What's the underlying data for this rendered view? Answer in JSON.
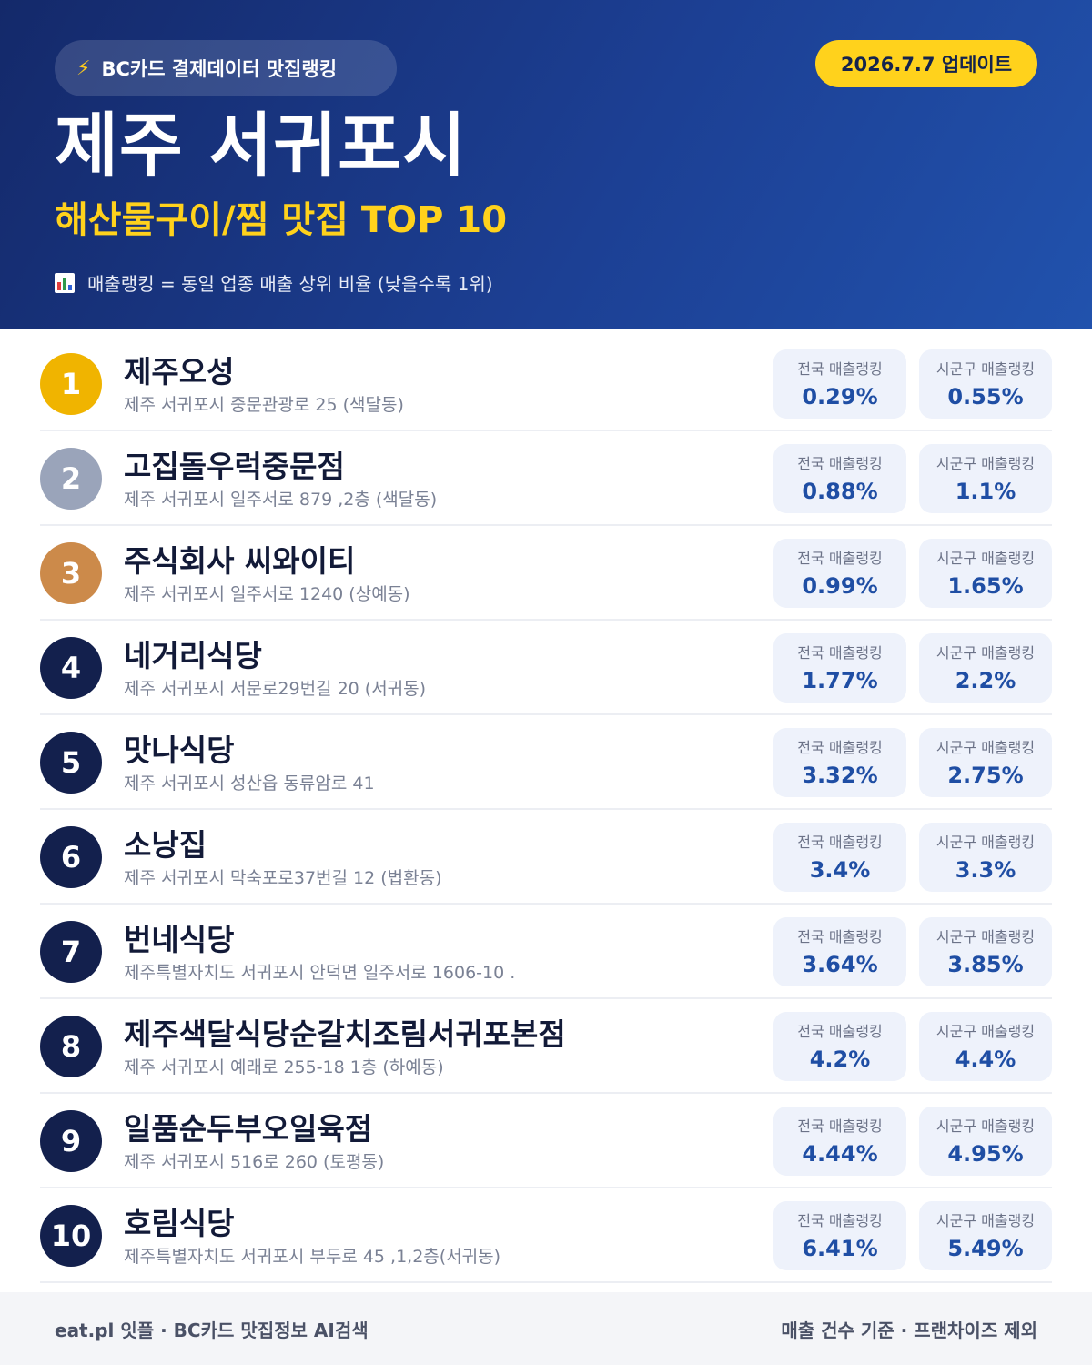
{
  "header": {
    "source_label": "BC카드 결제데이터 맛집랭킹",
    "update_label": "2026.7.7 업데이트",
    "title": "제주 서귀포시",
    "subtitle": "해산물구이/찜 맛집 TOP 10",
    "note": "매출랭킹 = 동일 업종 매출 상위 비율 (낮을수록 1위)",
    "icons": [
      "lightning-icon",
      "bar-chart-icon"
    ]
  },
  "colors": {
    "accent_yellow": "#ffd21c",
    "header_dark": "#14296a",
    "rank_gold": "#f0b400",
    "rank_silver": "#9aa4ba",
    "rank_bronze": "#cc8a4a",
    "rank_default": "#13204d",
    "value_blue": "#1f4ea4"
  },
  "stat_labels": {
    "national": "전국 매출랭킹",
    "local": "시군구 매출랭킹"
  },
  "restaurants": [
    {
      "rank": "1",
      "name": "제주오성",
      "address": "제주 서귀포시 중문관광로 25 (색달동)",
      "national": "0.29%",
      "local": "0.55%"
    },
    {
      "rank": "2",
      "name": "고집돌우럭중문점",
      "address": "제주 서귀포시 일주서로 879 ,2층 (색달동)",
      "national": "0.88%",
      "local": "1.1%"
    },
    {
      "rank": "3",
      "name": "주식회사 씨와이티",
      "address": "제주 서귀포시 일주서로 1240 (상예동)",
      "national": "0.99%",
      "local": "1.65%"
    },
    {
      "rank": "4",
      "name": "네거리식당",
      "address": "제주 서귀포시 서문로29번길 20 (서귀동)",
      "national": "1.77%",
      "local": "2.2%"
    },
    {
      "rank": "5",
      "name": "맛나식당",
      "address": "제주 서귀포시 성산읍 동류암로 41",
      "national": "3.32%",
      "local": "2.75%"
    },
    {
      "rank": "6",
      "name": "소낭집",
      "address": "제주 서귀포시 막숙포로37번길 12 (법환동)",
      "national": "3.4%",
      "local": "3.3%"
    },
    {
      "rank": "7",
      "name": "번네식당",
      "address": "제주특별자치도 서귀포시 안덕면 일주서로 1606-10 .",
      "national": "3.64%",
      "local": "3.85%"
    },
    {
      "rank": "8",
      "name": "제주색달식당순갈치조림서귀포본점",
      "address": "제주 서귀포시 예래로 255-18 1층 (하예동)",
      "national": "4.2%",
      "local": "4.4%"
    },
    {
      "rank": "9",
      "name": "일품순두부오일육점",
      "address": "제주 서귀포시 516로 260 (토평동)",
      "national": "4.44%",
      "local": "4.95%"
    },
    {
      "rank": "10",
      "name": "호림식당",
      "address": "제주특별자치도 서귀포시 부두로 45 ,1,2층(서귀동)",
      "national": "6.41%",
      "local": "5.49%"
    }
  ],
  "footer": {
    "left": "eat.pl 잇플 · BC카드 맛집정보 AI검색",
    "right": "매출 건수 기준 · 프랜차이즈 제외"
  }
}
